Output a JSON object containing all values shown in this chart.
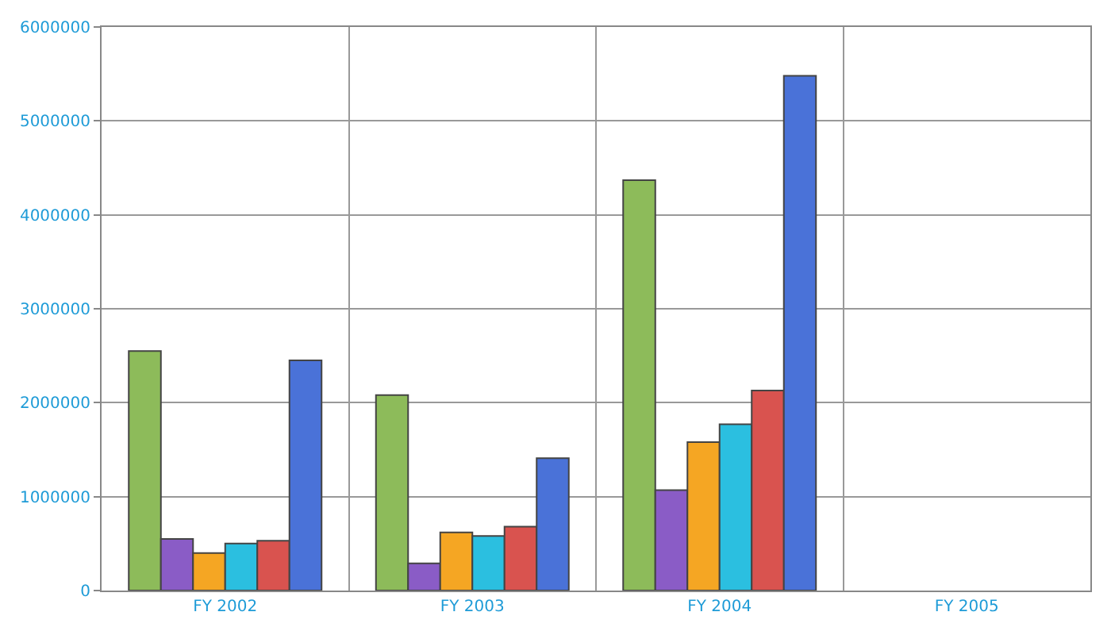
{
  "chart_data": {
    "type": "bar",
    "categories": [
      "FY 2002",
      "FY 2003",
      "FY 2004",
      "FY 2005"
    ],
    "series": [
      {
        "color": "#8dbb5a",
        "values": [
          2550000,
          2080000,
          4370000,
          null
        ]
      },
      {
        "color": "#8a5cc6",
        "values": [
          550000,
          290000,
          1070000,
          null
        ]
      },
      {
        "color": "#f5a623",
        "values": [
          400000,
          620000,
          1580000,
          null
        ]
      },
      {
        "color": "#2bbfe0",
        "values": [
          500000,
          580000,
          1770000,
          null
        ]
      },
      {
        "color": "#d9534f",
        "values": [
          530000,
          680000,
          2130000,
          null
        ]
      },
      {
        "color": "#4a72d8",
        "values": [
          2450000,
          1410000,
          5480000,
          null
        ]
      }
    ],
    "ylim": [
      0,
      6000000
    ],
    "yticks": [
      0,
      1000000,
      2000000,
      3000000,
      4000000,
      5000000,
      6000000
    ],
    "grid": true,
    "legend": false
  }
}
